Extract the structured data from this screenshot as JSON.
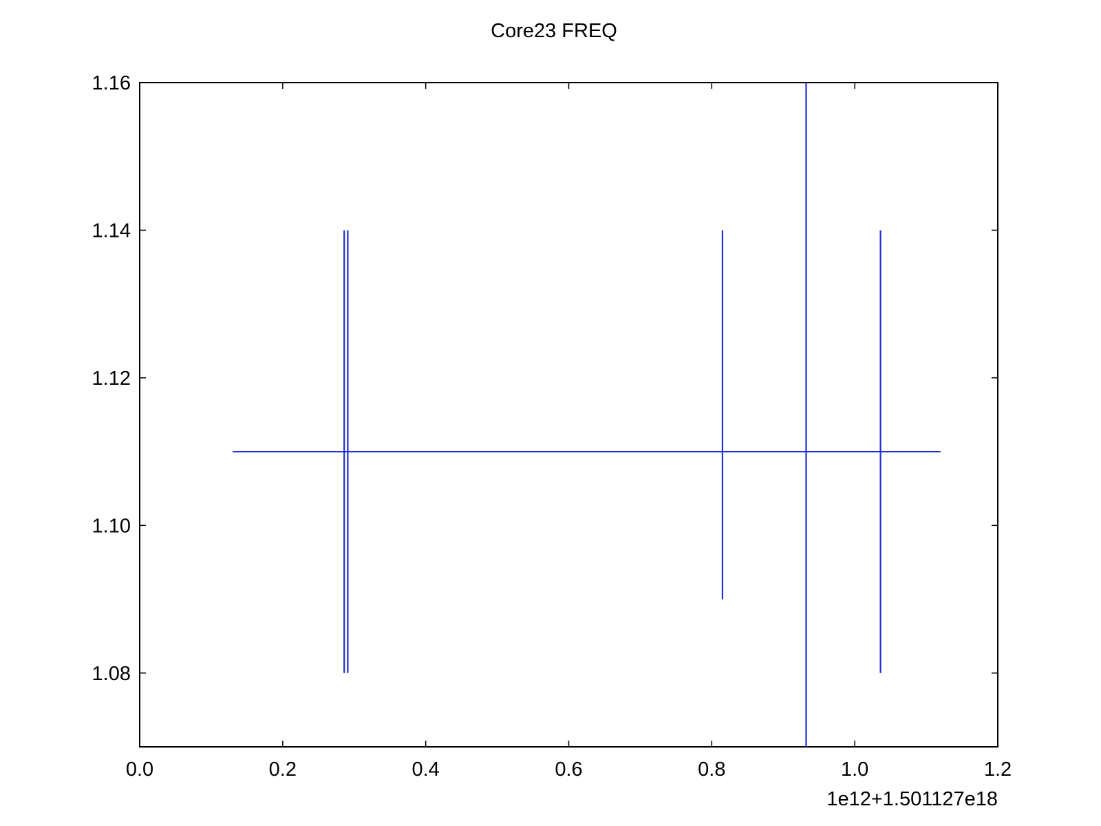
{
  "chart_data": {
    "type": "line",
    "title": "Core23 FREQ",
    "xlabel": "",
    "ylabel": "",
    "x_offset_label": "1e12+1.501127e18",
    "xlim": [
      0.0,
      1.2
    ],
    "ylim": [
      1.07,
      1.16
    ],
    "grid": false,
    "legend": "none",
    "x_ticks": [
      "0.0",
      "0.2",
      "0.4",
      "0.6",
      "0.8",
      "1.0",
      "1.2"
    ],
    "y_ticks": [
      "1.08",
      "1.10",
      "1.12",
      "1.14",
      "1.16"
    ],
    "series": [
      {
        "color": "#1f2fd4",
        "horizontal": {
          "x": [
            0.13,
            1.12
          ],
          "y": 1.11
        },
        "vertical_segments": [
          {
            "x": 0.286,
            "y": [
              1.08,
              1.14
            ]
          },
          {
            "x": 0.291,
            "y": [
              1.08,
              1.14
            ]
          },
          {
            "x": 0.815,
            "y": [
              1.09,
              1.14
            ]
          },
          {
            "x": 0.932,
            "y": [
              1.07,
              1.16
            ]
          },
          {
            "x": 1.036,
            "y": [
              1.08,
              1.14
            ]
          }
        ]
      }
    ]
  }
}
